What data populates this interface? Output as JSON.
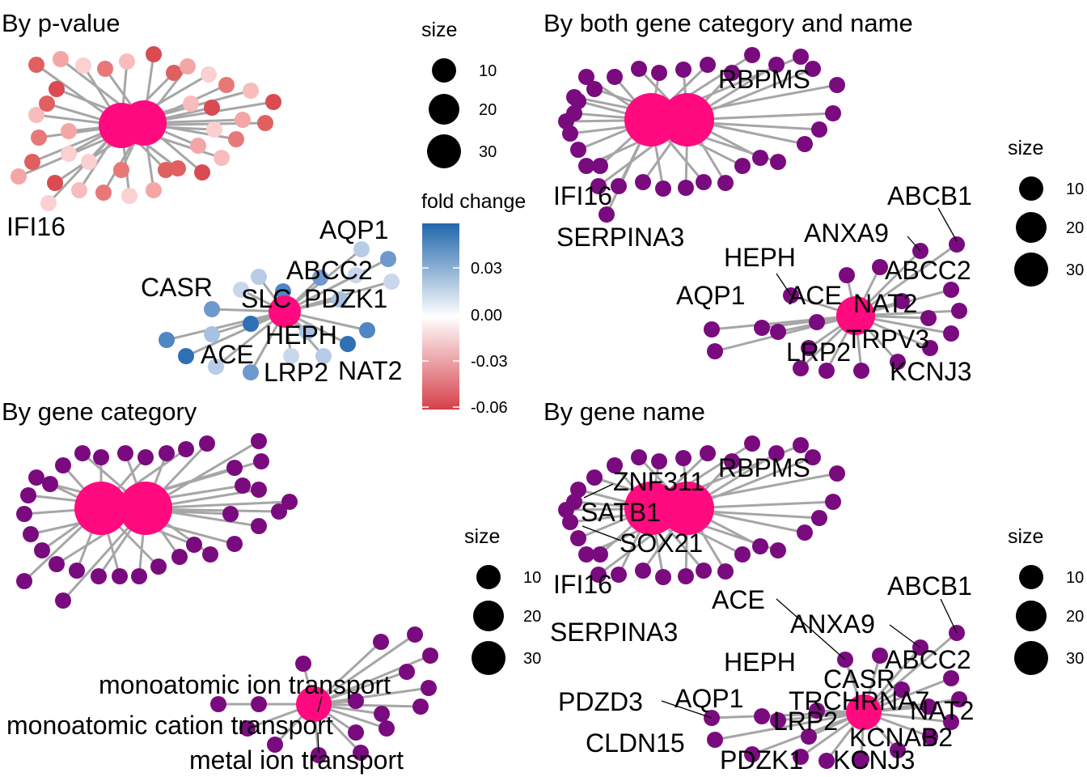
{
  "panels": [
    {
      "id": "pvalue",
      "title": "By p-value",
      "labels": [
        "IFI16",
        "AQP1",
        "ABCC2",
        "CASR",
        "SLC",
        "PDZK1",
        "HEPH",
        "ACE",
        "LRP2",
        "NAT2"
      ]
    },
    {
      "id": "both",
      "title": "By both gene category and name",
      "labels": [
        "RBPMS",
        "IFI16",
        "SERPINA3",
        "ABCB1",
        "ANXA9",
        "HEPH",
        "ABCC2",
        "AQP1",
        "ACE",
        "NAT2",
        "TRPV3",
        "LRP2",
        "KCNJ3"
      ]
    },
    {
      "id": "category",
      "title": "By gene category",
      "labels": [
        "monoatomic ion transport",
        "monoatomic cation transport",
        "metal ion transport"
      ]
    },
    {
      "id": "name",
      "title": "By gene name",
      "labels": [
        "ZNF311",
        "RBPMS",
        "SATB1",
        "SOX21",
        "IFI16",
        "SERPINA3",
        "ABCB1",
        "ACE",
        "ANXA9",
        "HEPH",
        "ABCC2",
        "CASR",
        "PDZD3",
        "AQP1",
        "TRCHRNA7",
        "NAT2",
        "LRP2",
        "CLDN15",
        "KCNAB2",
        "PDZK1",
        "KCNJ3"
      ]
    }
  ],
  "legends": {
    "size_title": "size",
    "size_values": [
      "10",
      "20",
      "30"
    ],
    "fold_title": "fold change",
    "fold_ticks": [
      "0.03",
      "0.00",
      "-0.03",
      "-0.06"
    ]
  },
  "colors": {
    "category_node": "#ff0a7f",
    "gene_node": "#7a0b7f",
    "edge": "#a6a6a6",
    "fold_high": "#2166ac",
    "fold_mid": "#ffffff",
    "fold_low": "#d6404a"
  }
}
